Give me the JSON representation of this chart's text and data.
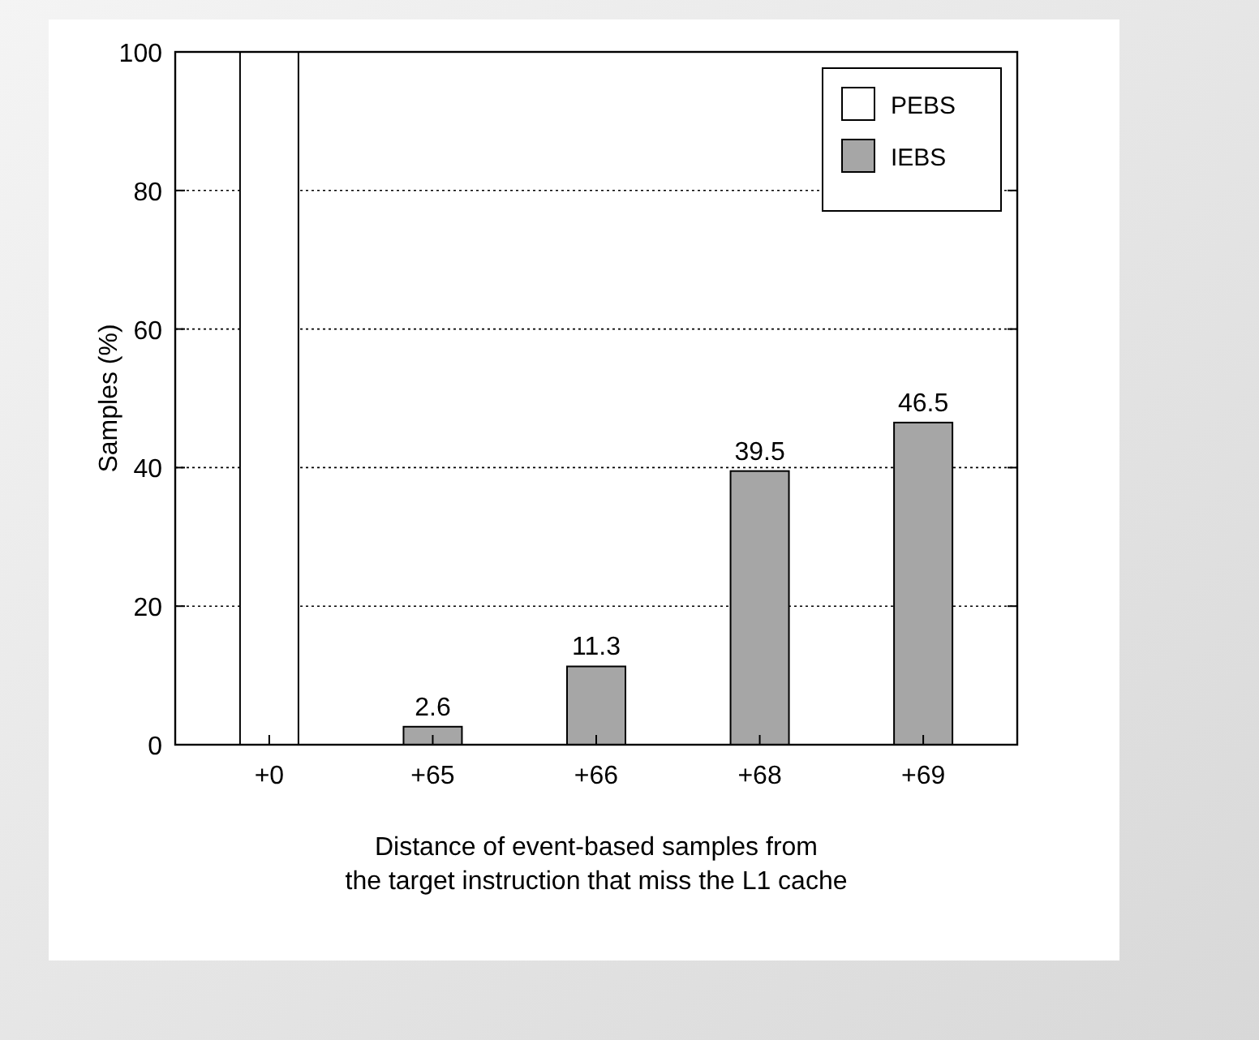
{
  "chart_data": {
    "type": "bar",
    "xlabel": "Distance of event-based samples from\nthe target instruction that miss the L1 cache",
    "ylabel": "Samples (%)",
    "categories": [
      "+0",
      "+65",
      "+66",
      "+68",
      "+69"
    ],
    "series": [
      {
        "name": "PEBS",
        "color": "#ffffff",
        "values": [
          100,
          null,
          null,
          null,
          null
        ]
      },
      {
        "name": "IEBS",
        "color": "#a6a6a6",
        "values": [
          null,
          2.6,
          11.3,
          39.5,
          46.5
        ],
        "value_labels": [
          null,
          "2.6",
          "11.3",
          "39.5",
          "46.5"
        ]
      }
    ],
    "ylim": [
      0,
      100
    ],
    "yticks": [
      0,
      20,
      40,
      60,
      80,
      100
    ],
    "grid": "y",
    "legend": "top right"
  }
}
